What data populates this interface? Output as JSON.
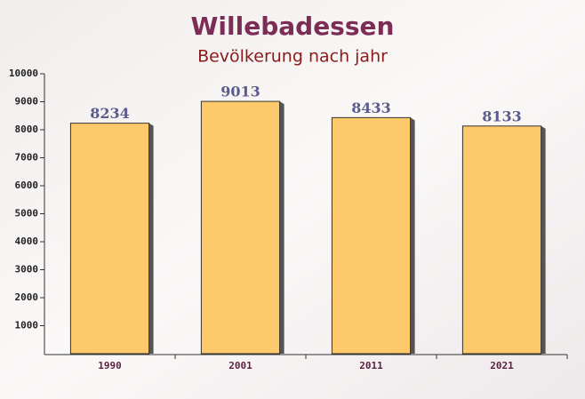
{
  "chart_data": {
    "type": "bar",
    "title": "Willebadessen",
    "subtitle": "Bevölkerung nach jahr",
    "categories": [
      "1990",
      "2001",
      "2011",
      "2021"
    ],
    "values": [
      8234,
      9013,
      8433,
      8133
    ],
    "color": "#fec96b",
    "ylim": [
      0,
      10000
    ],
    "yticks": [
      1000,
      2000,
      3000,
      4000,
      5000,
      6000,
      7000,
      8000,
      9000,
      10000
    ]
  }
}
